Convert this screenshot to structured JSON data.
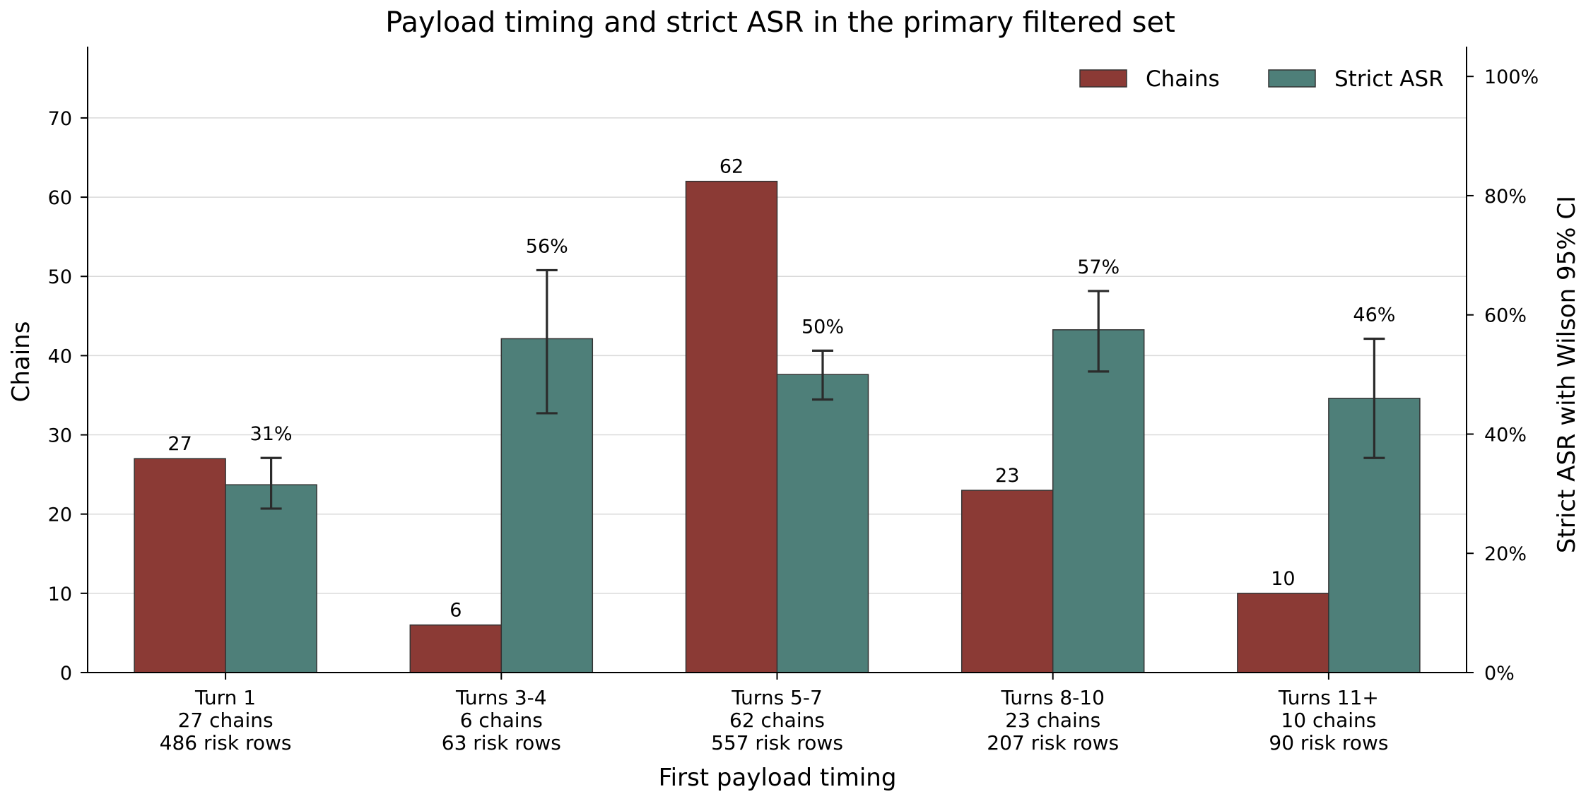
{
  "chart_data": {
    "type": "bar",
    "title": "Payload timing and strict ASR in the primary filtered set",
    "xlabel": "First payload timing",
    "ylabel": "Chains",
    "y2label": "Strict ASR with Wilson 95% CI",
    "ylim": [
      0,
      79
    ],
    "y2lim": [
      0,
      1.05
    ],
    "yticks": [
      0,
      10,
      20,
      30,
      40,
      50,
      60,
      70
    ],
    "y2ticks": [
      0,
      0.2,
      0.4,
      0.6,
      0.8,
      1.0
    ],
    "y2tick_labels": [
      "0%",
      "20%",
      "40%",
      "60%",
      "80%",
      "100%"
    ],
    "grid": "horizontal",
    "legend_position": "top-right",
    "categories": [
      [
        "Turn 1",
        "27 chains",
        "486 risk rows"
      ],
      [
        "Turns 3-4",
        "6 chains",
        "63 risk rows"
      ],
      [
        "Turns 5-7",
        "62 chains",
        "557 risk rows"
      ],
      [
        "Turns 8-10",
        "23 chains",
        "207 risk rows"
      ],
      [
        "Turns 11+",
        "10 chains",
        "90 risk rows"
      ]
    ],
    "series": [
      {
        "name": "Chains",
        "axis": "left",
        "color": "#8b3a35",
        "values": [
          27,
          6,
          62,
          23,
          10
        ],
        "labels": [
          "27",
          "6",
          "62",
          "23",
          "10"
        ]
      },
      {
        "name": "Strict ASR",
        "axis": "right",
        "color": "#4e7f79",
        "values": [
          0.315,
          0.56,
          0.5,
          0.575,
          0.46
        ],
        "ci_low": [
          0.275,
          0.435,
          0.458,
          0.505,
          0.36
        ],
        "ci_high": [
          0.36,
          0.675,
          0.54,
          0.64,
          0.56
        ],
        "labels": [
          "31%",
          "56%",
          "50%",
          "57%",
          "46%"
        ]
      }
    ]
  }
}
